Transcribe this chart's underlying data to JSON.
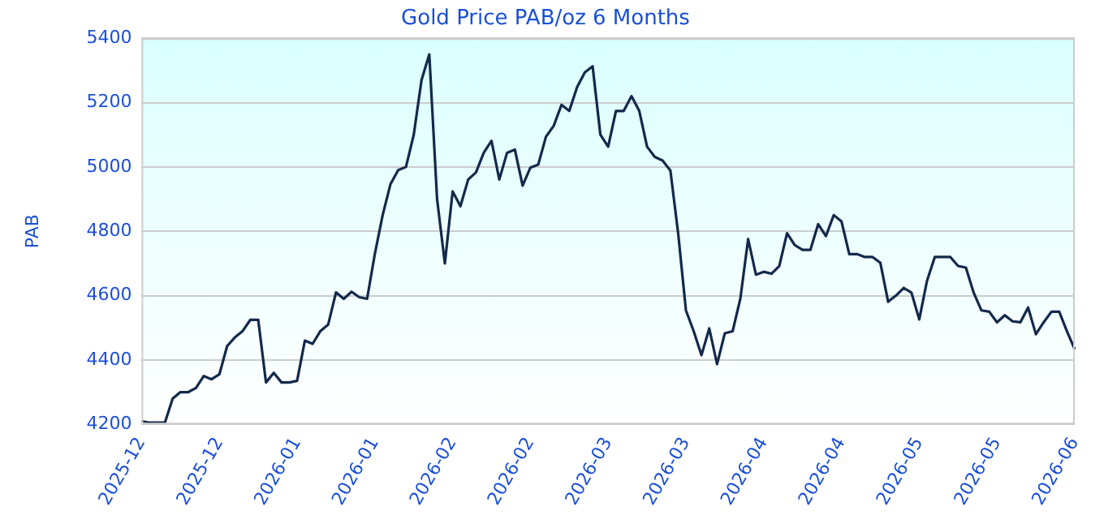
{
  "chart_data": {
    "type": "line",
    "title": "Gold Price PAB/oz 6 Months",
    "ylabel": "PAB",
    "categories": [
      "2025-12",
      null,
      null,
      null,
      null,
      null,
      null,
      null,
      null,
      null,
      "2025-12",
      null,
      null,
      null,
      null,
      null,
      null,
      null,
      null,
      null,
      "2026-01",
      null,
      null,
      null,
      null,
      null,
      null,
      null,
      null,
      null,
      "2026-01",
      null,
      null,
      null,
      null,
      null,
      null,
      null,
      null,
      null,
      "2026-02",
      null,
      null,
      null,
      null,
      null,
      null,
      null,
      null,
      null,
      "2026-02",
      null,
      null,
      null,
      null,
      null,
      null,
      null,
      null,
      null,
      "2026-03",
      null,
      null,
      null,
      null,
      null,
      null,
      null,
      null,
      null,
      "2026-03",
      null,
      null,
      null,
      null,
      null,
      null,
      null,
      null,
      null,
      "2026-04",
      null,
      null,
      null,
      null,
      null,
      null,
      null,
      null,
      null,
      "2026-04",
      null,
      null,
      null,
      null,
      null,
      null,
      null,
      null,
      null,
      "2026-05",
      null,
      null,
      null,
      null,
      null,
      null,
      null,
      null,
      null,
      "2026-05",
      null,
      null,
      null,
      null,
      null,
      null,
      null,
      null,
      null,
      "2026-06"
    ],
    "series": [
      {
        "color": "#13294b",
        "values": [
          4210,
          4205,
          4205,
          4205,
          4280,
          4300,
          4300,
          4313,
          4350,
          4340,
          4355,
          4443,
          4470,
          4490,
          4525,
          4525,
          4330,
          4360,
          4330,
          4330,
          4335,
          4460,
          4450,
          4490,
          4510,
          4610,
          4590,
          4612,
          4595,
          4590,
          4730,
          4850,
          4946,
          4990,
          5000,
          5100,
          5270,
          5350,
          4900,
          4700,
          4924,
          4878,
          4961,
          4983,
          5044,
          5081,
          4961,
          5044,
          5054,
          4942,
          4998,
          5007,
          5094,
          5128,
          5193,
          5174,
          5248,
          5294,
          5313,
          5100,
          5063,
          5174,
          5174,
          5220,
          5174,
          5063,
          5031,
          5020,
          4989,
          4794,
          4554,
          4489,
          4415,
          4498,
          4387,
          4483,
          4489,
          4591,
          4776,
          4665,
          4674,
          4668,
          4692,
          4794,
          4757,
          4742,
          4742,
          4822,
          4785,
          4850,
          4831,
          4729,
          4729,
          4720,
          4720,
          4702,
          4581,
          4600,
          4624,
          4609,
          4526,
          4646,
          4720,
          4720,
          4720,
          4692,
          4687,
          4609,
          4554,
          4550,
          4517,
          4539,
          4520,
          4517,
          4563,
          4480,
          4517,
          4550,
          4550,
          4489,
          4433
        ]
      }
    ],
    "ylim": [
      4200,
      5400
    ],
    "yticks": [
      4200,
      4400,
      4600,
      4800,
      5000,
      5200,
      5400
    ],
    "grid": "y",
    "legend": false,
    "marker": "none",
    "line_style": "solid"
  }
}
